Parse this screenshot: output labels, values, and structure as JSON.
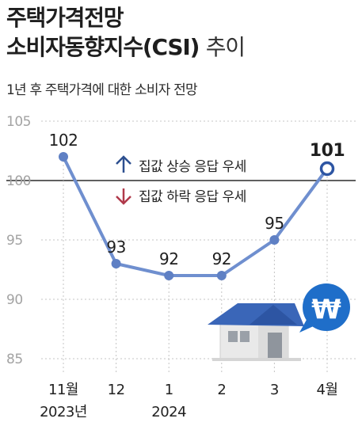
{
  "title": {
    "line1": "주택가격전망",
    "line2_main": "소비자동향지수(CSI)",
    "line2_light": "추이"
  },
  "subtitle": "1년 후 주택가격에 대한 소비자 전망",
  "legend": {
    "up_label": "집값 상승 응답 우세",
    "down_label": "집값 하락 응답 우세"
  },
  "colors": {
    "line": "#6f8fcf",
    "up_arrow": "#2d4f8f",
    "down_arrow": "#b0394a",
    "won_badge": "#1f6ec9",
    "house_roof": "#3a66b8",
    "house_wall": "#e6e6e6"
  },
  "icons": [
    "up-arrow-icon",
    "down-arrow-icon",
    "house-icon",
    "won-speech-bubble-icon"
  ],
  "chart_data": {
    "type": "line",
    "categories": [
      "11월",
      "12",
      "1",
      "2",
      "3",
      "4월"
    ],
    "year_labels": {
      "0": "2023년",
      "2": "2024"
    },
    "values": [
      102,
      93,
      92,
      92,
      95,
      101
    ],
    "data_labels": [
      "102",
      "93",
      "92",
      "92",
      "95",
      "101"
    ],
    "highlight_last": true,
    "ylim": [
      85,
      105
    ],
    "yticks": [
      85,
      90,
      95,
      100,
      105
    ],
    "baseline": 100,
    "grid": "dotted vertical and horizontal",
    "legend_position": "top-center"
  }
}
